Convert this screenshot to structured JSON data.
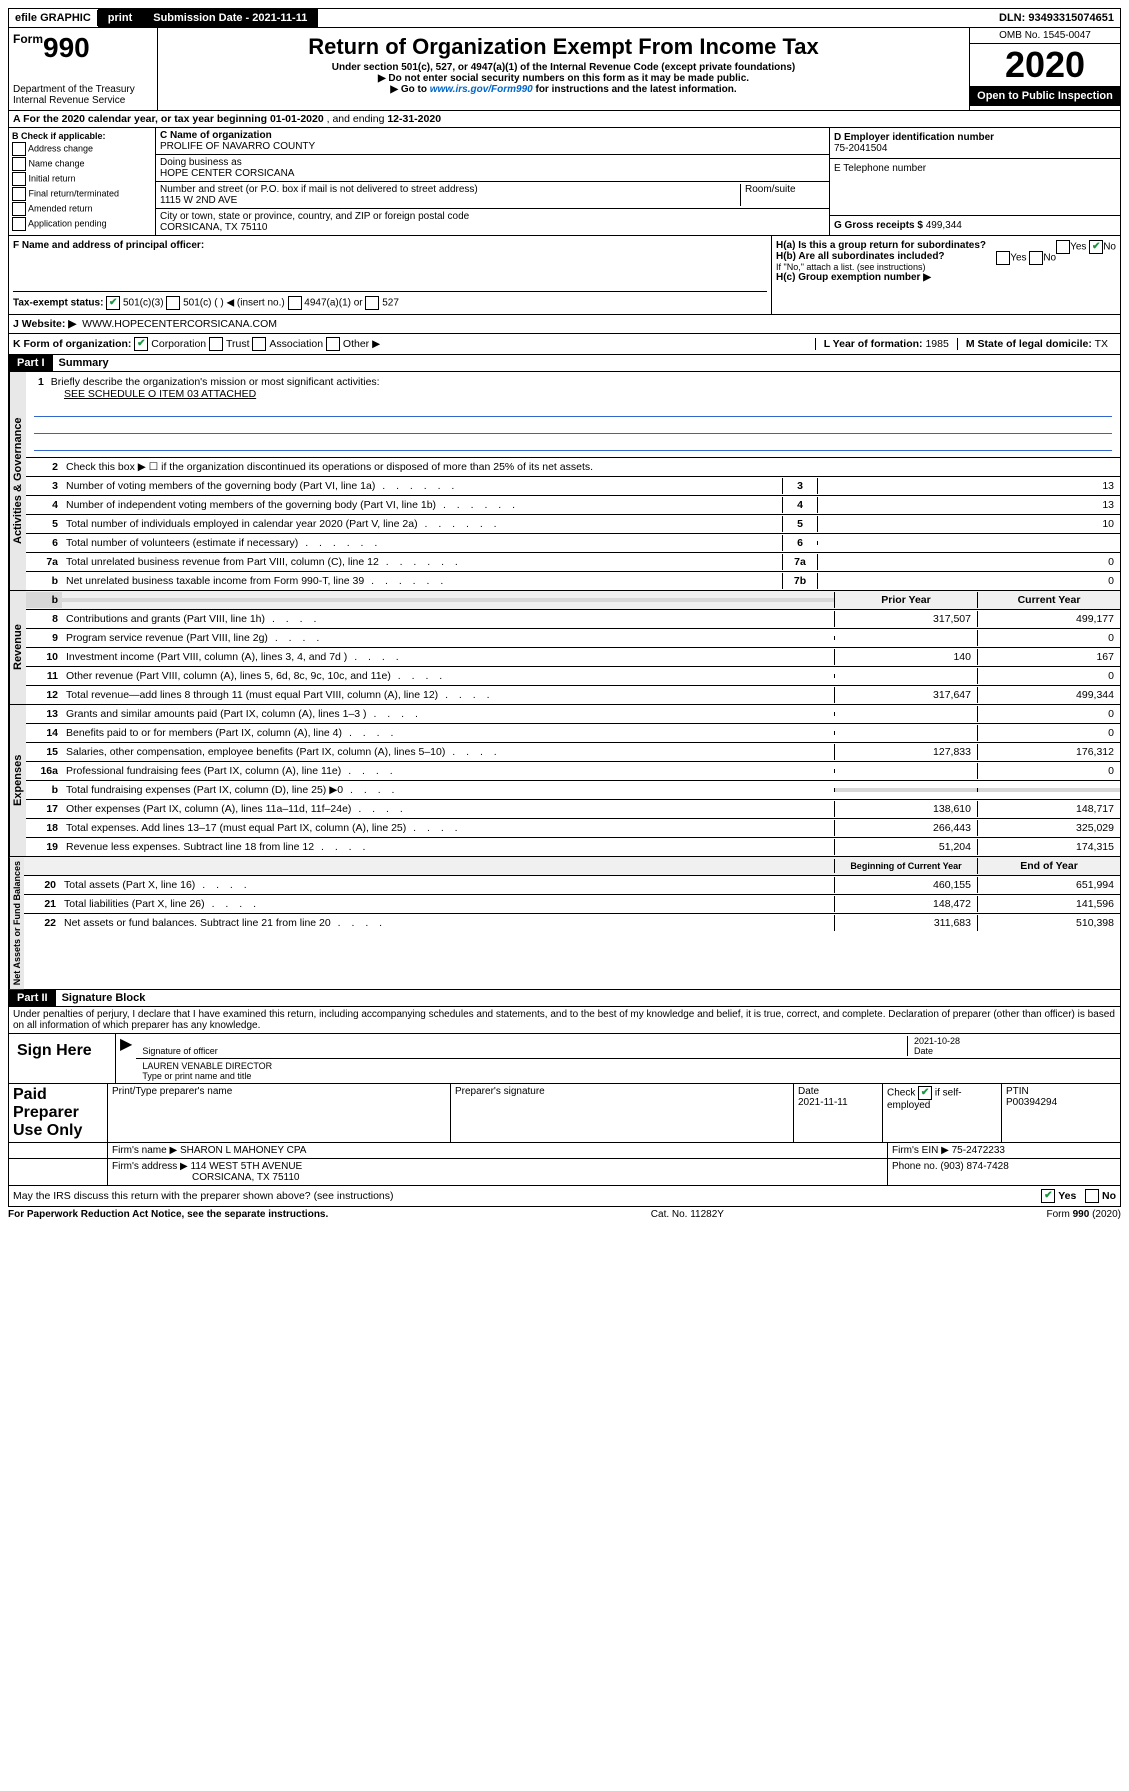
{
  "top_bar": {
    "efile": "efile GRAPHIC",
    "print": "print",
    "submission": "Submission Date - 2021-11-11",
    "dln": "DLN: 93493315074651"
  },
  "header": {
    "form_prefix": "Form",
    "form_number": "990",
    "dept": "Department of the Treasury Internal Revenue Service",
    "title": "Return of Organization Exempt From Income Tax",
    "sub1": "Under section 501(c), 527, or 4947(a)(1) of the Internal Revenue Code (except private foundations)",
    "sub2": "▶ Do not enter social security numbers on this form as it may be made public.",
    "sub3_pre": "▶ Go to ",
    "sub3_link": "www.irs.gov/Form990",
    "sub3_post": " for instructions and the latest information.",
    "omb": "OMB No. 1545-0047",
    "year": "2020",
    "open": "Open to Public Inspection"
  },
  "section_a": {
    "text_pre": "A For the 2020 calendar year, or tax year beginning ",
    "begin": "01-01-2020",
    "mid": " , and ending ",
    "end": "12-31-2020"
  },
  "section_b": {
    "label": "B Check if applicable:",
    "opts": [
      "Address change",
      "Name change",
      "Initial return",
      "Final return/terminated",
      "Amended return",
      "Application pending"
    ]
  },
  "section_c": {
    "name_label": "C Name of organization",
    "name": "PROLIFE OF NAVARRO COUNTY",
    "dba_label": "Doing business as",
    "dba": "HOPE CENTER CORSICANA",
    "addr_label": "Number and street (or P.O. box if mail is not delivered to street address)",
    "room_label": "Room/suite",
    "addr": "1115 W 2ND AVE",
    "city_label": "City or town, state or province, country, and ZIP or foreign postal code",
    "city": "CORSICANA, TX  75110"
  },
  "section_d": {
    "label": "D Employer identification number",
    "ein": "75-2041504"
  },
  "section_e": {
    "label": "E Telephone number",
    "val": ""
  },
  "section_g": {
    "label": "G Gross receipts $",
    "val": "499,344"
  },
  "section_f": {
    "label": "F Name and address of principal officer:",
    "val": ""
  },
  "section_h": {
    "ha": "H(a) Is this a group return for subordinates?",
    "hb": "H(b) Are all subordinates included?",
    "hb_note": "If \"No,\" attach a list. (see instructions)",
    "hc": "H(c) Group exemption number ▶"
  },
  "section_i": {
    "label": "Tax-exempt status:",
    "o1": "501(c)(3)",
    "o2": "501(c) (  ) ◀ (insert no.)",
    "o3": "4947(a)(1) or",
    "o4": "527"
  },
  "section_j": {
    "label": "J    Website: ▶",
    "val": "WWW.HOPECENTERCORSICANA.COM"
  },
  "section_k": {
    "label": "K Form of organization:",
    "opts": [
      "Corporation",
      "Trust",
      "Association",
      "Other ▶"
    ],
    "l_label": "L Year of formation:",
    "l_val": "1985",
    "m_label": "M State of legal domicile:",
    "m_val": "TX"
  },
  "part1": {
    "header": "Part I",
    "title": "Summary",
    "l1_label": "Briefly describe the organization's mission or most significant activities:",
    "l1_val": "SEE SCHEDULE O ITEM 03 ATTACHED",
    "l2": "Check this box ▶ ☐ if the organization discontinued its operations or disposed of more than 25% of its net assets.",
    "lines_single": [
      {
        "n": "3",
        "label": "Number of voting members of the governing body (Part VI, line 1a)",
        "box": "3",
        "val": "13"
      },
      {
        "n": "4",
        "label": "Number of independent voting members of the governing body (Part VI, line 1b)",
        "box": "4",
        "val": "13"
      },
      {
        "n": "5",
        "label": "Total number of individuals employed in calendar year 2020 (Part V, line 2a)",
        "box": "5",
        "val": "10"
      },
      {
        "n": "6",
        "label": "Total number of volunteers (estimate if necessary)",
        "box": "6",
        "val": ""
      },
      {
        "n": "7a",
        "label": "Total unrelated business revenue from Part VIII, column (C), line 12",
        "box": "7a",
        "val": "0"
      },
      {
        "n": "b",
        "label": "Net unrelated business taxable income from Form 990-T, line 39",
        "box": "7b",
        "val": "0"
      }
    ],
    "col_headers": {
      "prior": "Prior Year",
      "current": "Current Year"
    },
    "revenue": [
      {
        "n": "8",
        "label": "Contributions and grants (Part VIII, line 1h)",
        "p": "317,507",
        "c": "499,177"
      },
      {
        "n": "9",
        "label": "Program service revenue (Part VIII, line 2g)",
        "p": "",
        "c": "0"
      },
      {
        "n": "10",
        "label": "Investment income (Part VIII, column (A), lines 3, 4, and 7d )",
        "p": "140",
        "c": "167"
      },
      {
        "n": "11",
        "label": "Other revenue (Part VIII, column (A), lines 5, 6d, 8c, 9c, 10c, and 11e)",
        "p": "",
        "c": "0"
      },
      {
        "n": "12",
        "label": "Total revenue—add lines 8 through 11 (must equal Part VIII, column (A), line 12)",
        "p": "317,647",
        "c": "499,344"
      }
    ],
    "expenses": [
      {
        "n": "13",
        "label": "Grants and similar amounts paid (Part IX, column (A), lines 1–3 )",
        "p": "",
        "c": "0"
      },
      {
        "n": "14",
        "label": "Benefits paid to or for members (Part IX, column (A), line 4)",
        "p": "",
        "c": "0"
      },
      {
        "n": "15",
        "label": "Salaries, other compensation, employee benefits (Part IX, column (A), lines 5–10)",
        "p": "127,833",
        "c": "176,312"
      },
      {
        "n": "16a",
        "label": "Professional fundraising fees (Part IX, column (A), line 11e)",
        "p": "",
        "c": "0"
      },
      {
        "n": "b",
        "label": "Total fundraising expenses (Part IX, column (D), line 25) ▶0",
        "p": "shaded",
        "c": "shaded"
      },
      {
        "n": "17",
        "label": "Other expenses (Part IX, column (A), lines 11a–11d, 11f–24e)",
        "p": "138,610",
        "c": "148,717"
      },
      {
        "n": "18",
        "label": "Total expenses. Add lines 13–17 (must equal Part IX, column (A), line 25)",
        "p": "266,443",
        "c": "325,029"
      },
      {
        "n": "19",
        "label": "Revenue less expenses. Subtract line 18 from line 12",
        "p": "51,204",
        "c": "174,315"
      }
    ],
    "na_headers": {
      "beg": "Beginning of Current Year",
      "end": "End of Year"
    },
    "netassets": [
      {
        "n": "20",
        "label": "Total assets (Part X, line 16)",
        "p": "460,155",
        "c": "651,994"
      },
      {
        "n": "21",
        "label": "Total liabilities (Part X, line 26)",
        "p": "148,472",
        "c": "141,596"
      },
      {
        "n": "22",
        "label": "Net assets or fund balances. Subtract line 21 from line 20",
        "p": "311,683",
        "c": "510,398"
      }
    ],
    "tabs": {
      "gov": "Activities & Governance",
      "rev": "Revenue",
      "exp": "Expenses",
      "na": "Net Assets or Fund Balances"
    }
  },
  "part2": {
    "header": "Part II",
    "title": "Signature Block",
    "perjury": "Under penalties of perjury, I declare that I have examined this return, including accompanying schedules and statements, and to the best of my knowledge and belief, it is true, correct, and complete. Declaration of preparer (other than officer) is based on all information of which preparer has any knowledge.",
    "sign_here": "Sign Here",
    "sig_officer": "Signature of officer",
    "sig_date": "2021-10-28",
    "date_label": "Date",
    "officer_name": "LAUREN VENABLE  DIRECTOR",
    "type_name": "Type or print name and title",
    "paid": "Paid Preparer Use Only",
    "prep_name_label": "Print/Type preparer's name",
    "prep_sig_label": "Preparer's signature",
    "prep_date_label": "Date",
    "prep_date": "2021-11-11",
    "check_if": "Check ☑ if self-employed",
    "ptin_label": "PTIN",
    "ptin": "P00394294",
    "firm_name_label": "Firm's name    ▶",
    "firm_name": "SHARON L MAHONEY CPA",
    "firm_ein_label": "Firm's EIN ▶",
    "firm_ein": "75-2472233",
    "firm_addr_label": "Firm's address ▶",
    "firm_addr1": "114 WEST 5TH AVENUE",
    "firm_addr2": "CORSICANA, TX  75110",
    "phone_label": "Phone no.",
    "phone": "(903) 874-7428",
    "discuss": "May the IRS discuss this return with the preparer shown above? (see instructions)",
    "yes": "Yes",
    "no": "No"
  },
  "footer": {
    "paperwork": "For Paperwork Reduction Act Notice, see the separate instructions.",
    "cat": "Cat. No. 11282Y",
    "form": "Form 990 (2020)"
  }
}
